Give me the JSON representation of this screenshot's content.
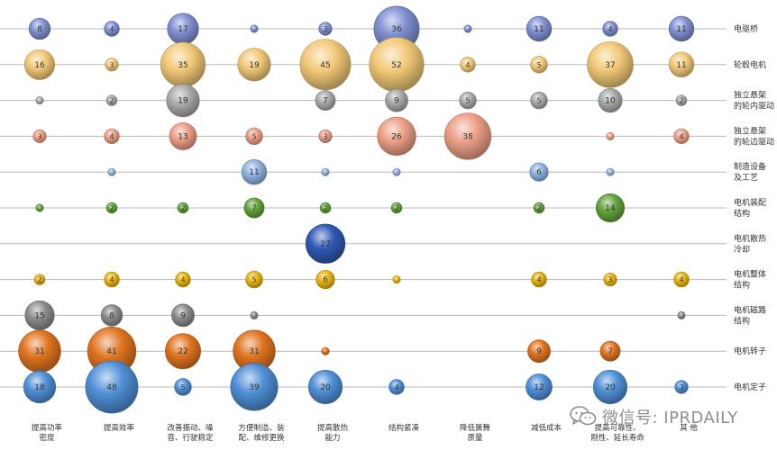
{
  "chart_data": {
    "type": "bubble",
    "x_categories": [
      [
        "提高功率",
        "密度"
      ],
      [
        "提高效率"
      ],
      [
        "改善振动、噪",
        "音、行驶稳定"
      ],
      [
        "方便制造、装",
        "配、维修更换"
      ],
      [
        "提高散热",
        "能力"
      ],
      [
        "结构紧凑"
      ],
      [
        "降低簧舞",
        "质量"
      ],
      [
        "减低成本"
      ],
      [
        "提高可靠性、",
        "刚性、延长寿命"
      ],
      [
        "其 他"
      ]
    ],
    "rows": [
      {
        "label": [
          "电驱桥"
        ],
        "color": "#7f8fd0",
        "values": [
          8,
          4,
          17,
          1,
          3,
          36,
          1,
          11,
          4,
          11
        ]
      },
      {
        "label": [
          "轮毂电机"
        ],
        "color": "#f2c877",
        "values": [
          16,
          3,
          35,
          19,
          45,
          52,
          4,
          5,
          37,
          11
        ]
      },
      {
        "label": [
          "独立悬架",
          "的轮内驱动"
        ],
        "color": "#a9a9a9",
        "values": [
          1,
          2,
          19,
          null,
          7,
          9,
          5,
          5,
          10,
          2
        ]
      },
      {
        "label": [
          "独立悬架",
          "的轮边驱动"
        ],
        "color": "#ec9f86",
        "values": [
          3,
          4,
          13,
          5,
          3,
          26,
          38,
          null,
          1,
          4
        ]
      },
      {
        "label": [
          "制造设备",
          "及工艺"
        ],
        "color": "#8fb2de",
        "values": [
          null,
          1,
          null,
          11,
          1,
          1,
          null,
          6,
          1,
          null
        ]
      },
      {
        "label": [
          "电机装配",
          "结构"
        ],
        "color": "#62a33a",
        "values": [
          1,
          2,
          2,
          7,
          2,
          2,
          null,
          2,
          14,
          null
        ]
      },
      {
        "label": [
          "电机散热",
          "冷却"
        ],
        "color": "#2f59b3",
        "values": [
          null,
          null,
          null,
          null,
          27,
          null,
          null,
          null,
          null,
          null
        ]
      },
      {
        "label": [
          "电机整体",
          "结构"
        ],
        "color": "#e9b30f",
        "values": [
          2,
          4,
          4,
          5,
          6,
          1,
          null,
          4,
          3,
          4
        ]
      },
      {
        "label": [
          "电机磁路",
          "结构"
        ],
        "color": "#8b8b8b",
        "values": [
          15,
          8,
          9,
          1,
          null,
          null,
          null,
          null,
          null,
          1
        ]
      },
      {
        "label": [
          "电机转子"
        ],
        "color": "#e0741f",
        "values": [
          31,
          41,
          22,
          31,
          1,
          null,
          null,
          9,
          7,
          null
        ]
      },
      {
        "label": [
          "电机定子"
        ],
        "color": "#4f8fd6",
        "values": [
          18,
          48,
          5,
          39,
          20,
          4,
          null,
          12,
          20,
          3
        ]
      }
    ],
    "grid": true,
    "legend": "none"
  },
  "watermark": {
    "text": "微信号: IPRDAILY",
    "icon": "wechat-icon"
  }
}
